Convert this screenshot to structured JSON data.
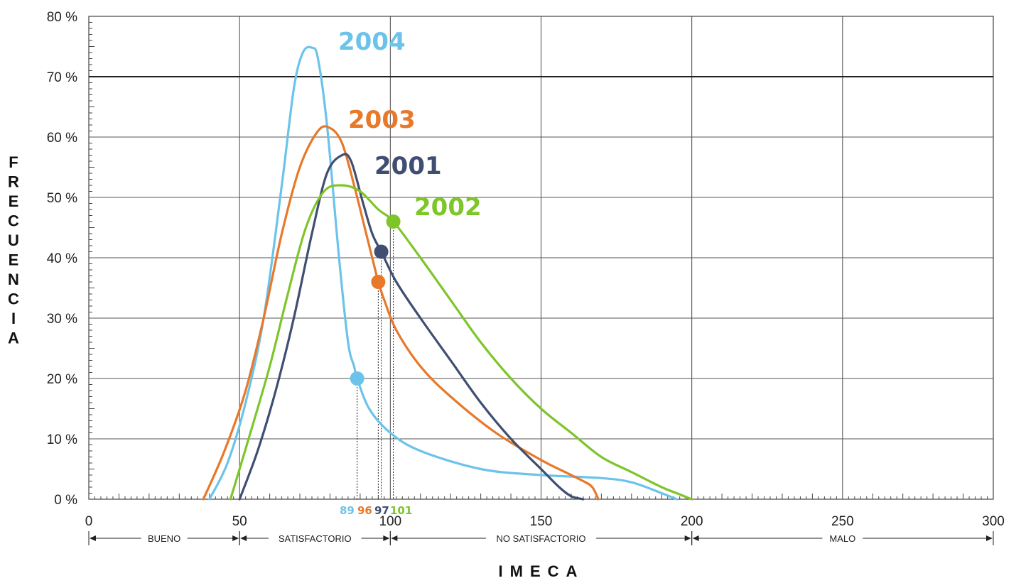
{
  "chart_data": {
    "type": "line",
    "xlabel": "IMECA",
    "ylabel": "FRECUENCIA",
    "xlim": [
      0,
      300
    ],
    "ylim": [
      0,
      80
    ],
    "x_ticks": [
      "0",
      "50",
      "100",
      "150",
      "200",
      "250",
      "300"
    ],
    "y_ticks": [
      "0 %",
      "10 %",
      "20 %",
      "30 %",
      "40 %",
      "50 %",
      "60 %",
      "70 %",
      "80 %"
    ],
    "grid": true,
    "categories_bands": [
      {
        "label": "BUENO",
        "from": 0,
        "to": 50
      },
      {
        "label": "SATISFACTORIO",
        "from": 50,
        "to": 100
      },
      {
        "label": "NO SATISFACTORIO",
        "from": 100,
        "to": 200
      },
      {
        "label": "MALO",
        "from": 200,
        "to": 300
      }
    ],
    "series": [
      {
        "name": "2004",
        "color": "#6cc3ea",
        "points": [
          [
            40,
            0
          ],
          [
            46,
            6
          ],
          [
            52,
            16
          ],
          [
            58,
            30
          ],
          [
            64,
            52
          ],
          [
            68,
            68
          ],
          [
            71,
            74
          ],
          [
            74,
            74.8
          ],
          [
            76,
            73
          ],
          [
            79,
            62
          ],
          [
            83,
            40
          ],
          [
            86,
            26
          ],
          [
            88,
            22
          ],
          [
            89,
            20
          ],
          [
            93,
            15
          ],
          [
            100,
            11
          ],
          [
            110,
            8
          ],
          [
            130,
            5
          ],
          [
            150,
            4
          ],
          [
            170,
            3.5
          ],
          [
            180,
            2.8
          ],
          [
            190,
            1
          ],
          [
            195,
            0
          ]
        ],
        "marker": {
          "x": 89,
          "y": 20,
          "label": "89"
        }
      },
      {
        "name": "2003",
        "color": "#e8782a",
        "points": [
          [
            38,
            0
          ],
          [
            45,
            8
          ],
          [
            52,
            18
          ],
          [
            58,
            30
          ],
          [
            64,
            44
          ],
          [
            70,
            55
          ],
          [
            76,
            61
          ],
          [
            80,
            61.5
          ],
          [
            84,
            59
          ],
          [
            88,
            52
          ],
          [
            92,
            44
          ],
          [
            95,
            38
          ],
          [
            96,
            36
          ],
          [
            98,
            33
          ],
          [
            102,
            28
          ],
          [
            110,
            22
          ],
          [
            120,
            17
          ],
          [
            135,
            11
          ],
          [
            150,
            6.5
          ],
          [
            158,
            4.5
          ],
          [
            164,
            3
          ],
          [
            167,
            2
          ],
          [
            169,
            0
          ]
        ],
        "marker": {
          "x": 96,
          "y": 36,
          "label": "96"
        }
      },
      {
        "name": "2001",
        "color": "#404e72",
        "points": [
          [
            50,
            0
          ],
          [
            56,
            8
          ],
          [
            62,
            18
          ],
          [
            68,
            30
          ],
          [
            74,
            44
          ],
          [
            79,
            54
          ],
          [
            84,
            57
          ],
          [
            87,
            56
          ],
          [
            91,
            49
          ],
          [
            94,
            44
          ],
          [
            97,
            41
          ],
          [
            102,
            36
          ],
          [
            110,
            30
          ],
          [
            120,
            23
          ],
          [
            130,
            16
          ],
          [
            140,
            10
          ],
          [
            150,
            5
          ],
          [
            156,
            2
          ],
          [
            160,
            0.5
          ],
          [
            164,
            0
          ]
        ],
        "marker": {
          "x": 97,
          "y": 41,
          "label": "97"
        }
      },
      {
        "name": "2002",
        "color": "#7ec52a",
        "points": [
          [
            47,
            0
          ],
          [
            53,
            10
          ],
          [
            60,
            22
          ],
          [
            66,
            34
          ],
          [
            72,
            45
          ],
          [
            78,
            51
          ],
          [
            84,
            52
          ],
          [
            90,
            51
          ],
          [
            96,
            48
          ],
          [
            101,
            46
          ],
          [
            110,
            40
          ],
          [
            120,
            33
          ],
          [
            130,
            26
          ],
          [
            140,
            20
          ],
          [
            150,
            15
          ],
          [
            160,
            11
          ],
          [
            170,
            7
          ],
          [
            180,
            4.5
          ],
          [
            190,
            2
          ],
          [
            196,
            0.8
          ],
          [
            200,
            0
          ]
        ],
        "marker": {
          "x": 101,
          "y": 46,
          "label": "101"
        }
      }
    ]
  }
}
